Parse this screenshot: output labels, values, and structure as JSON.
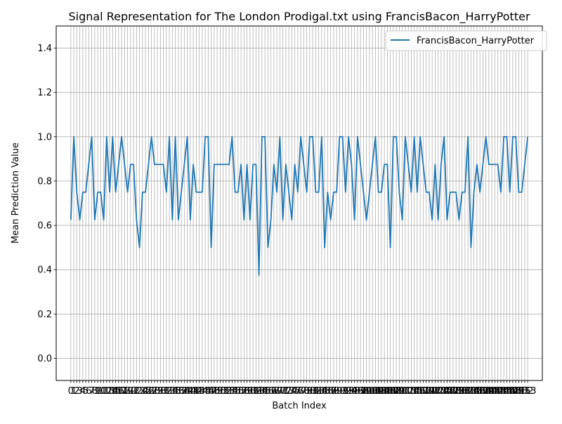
{
  "chart_data": {
    "type": "line",
    "title": "Signal Representation for The London Prodigal.txt using FrancisBacon_HarryPotter",
    "xlabel": "Batch Index",
    "ylabel": "Mean Prediction Value",
    "xlim": [
      -4.9,
      157.9
    ],
    "ylim": [
      -0.1,
      1.5
    ],
    "y_ticks": [
      0.0,
      0.2,
      0.4,
      0.6,
      0.8,
      1.0,
      1.2,
      1.4
    ],
    "y_tick_labels": [
      "0.0",
      "0.2",
      "0.4",
      "0.6",
      "0.8",
      "1.0",
      "1.2",
      "1.4"
    ],
    "x_ticks_every_integer": true,
    "x_tick_count": 154,
    "grid": true,
    "legend_position": "upper-right",
    "series": [
      {
        "name": "FrancisBacon_HarryPotter",
        "color": "#1f77b4",
        "values": [
          0.625,
          1.0,
          0.75,
          0.625,
          0.75,
          0.75,
          0.875,
          1.0,
          0.625,
          0.75,
          0.75,
          0.625,
          1.0,
          0.75,
          1.0,
          0.75,
          0.875,
          1.0,
          0.875,
          0.75,
          0.875,
          0.875,
          0.625,
          0.5,
          0.75,
          0.75,
          0.875,
          1.0,
          0.875,
          0.875,
          0.875,
          0.875,
          0.75,
          1.0,
          0.625,
          1.0,
          0.625,
          0.75,
          0.875,
          1.0,
          0.625,
          0.875,
          0.75,
          0.75,
          0.75,
          1.0,
          1.0,
          0.5,
          0.875,
          0.875,
          0.875,
          0.875,
          0.875,
          0.875,
          1.0,
          0.75,
          0.75,
          0.875,
          0.625,
          0.875,
          0.625,
          0.875,
          0.875,
          0.375,
          1.0,
          1.0,
          0.5,
          0.625,
          0.875,
          0.75,
          1.0,
          0.625,
          0.875,
          0.75,
          0.625,
          0.875,
          0.75,
          1.0,
          0.875,
          0.75,
          1.0,
          1.0,
          0.75,
          0.75,
          1.0,
          0.5,
          0.75,
          0.625,
          0.75,
          0.75,
          1.0,
          1.0,
          0.75,
          1.0,
          0.875,
          0.625,
          1.0,
          0.875,
          0.75,
          0.625,
          0.75,
          0.875,
          1.0,
          0.75,
          0.75,
          0.875,
          0.875,
          0.5,
          1.0,
          1.0,
          0.75,
          0.625,
          1.0,
          0.875,
          0.75,
          1.0,
          0.75,
          1.0,
          0.875,
          0.75,
          0.75,
          0.625,
          0.875,
          0.625,
          0.875,
          1.0,
          0.625,
          0.75,
          0.75,
          0.75,
          0.625,
          0.75,
          0.75,
          1.0,
          0.5,
          0.75,
          0.875,
          0.75,
          0.875,
          1.0,
          0.875,
          0.875,
          0.875,
          0.875,
          0.75,
          1.0,
          1.0,
          0.75,
          1.0,
          1.0,
          0.75,
          0.75,
          0.875,
          1.0
        ]
      }
    ]
  }
}
